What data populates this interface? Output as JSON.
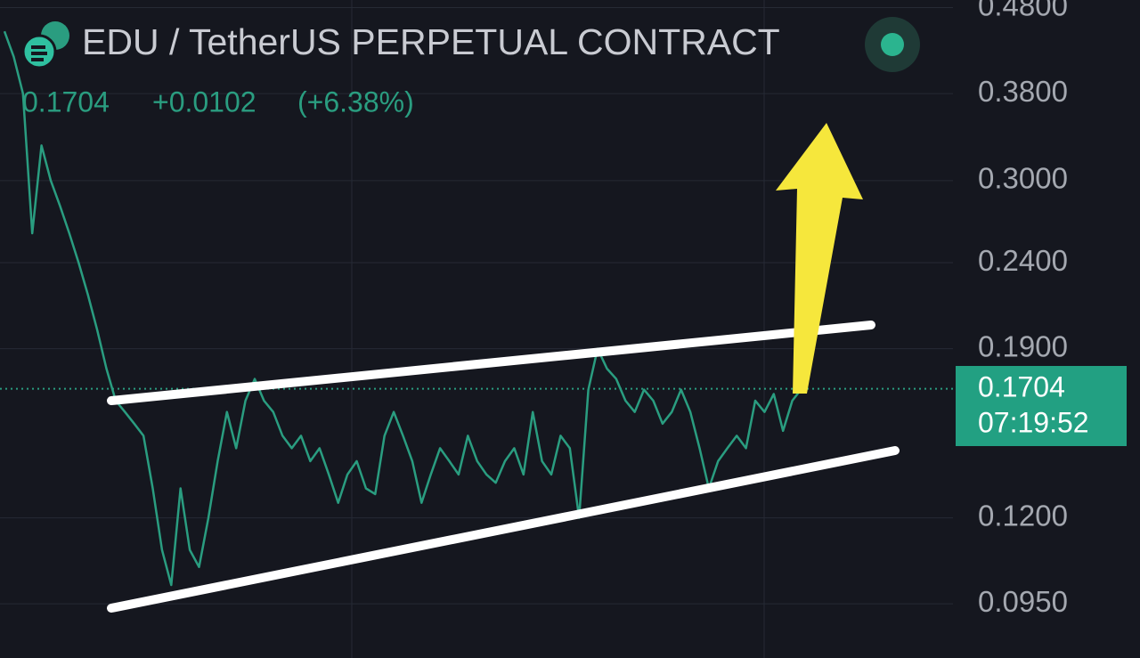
{
  "chart_data": {
    "type": "line",
    "title": "EDU / TetherUS PERPETUAL CONTRACT",
    "last_price": 0.1704,
    "change_text": "+0.0102",
    "change_pct_text": "(+6.38%)",
    "countdown": "07:19:52",
    "log_scale": true,
    "grid": true,
    "ylim": [
      0.082,
      0.49
    ],
    "yticks": [
      {
        "value": 0.48,
        "label": "0.4800"
      },
      {
        "value": 0.38,
        "label": "0.3800"
      },
      {
        "value": 0.3,
        "label": "0.3000"
      },
      {
        "value": 0.24,
        "label": "0.2400"
      },
      {
        "value": 0.19,
        "label": "0.1900"
      },
      {
        "value": 0.12,
        "label": "0.1200"
      },
      {
        "value": 0.095,
        "label": "0.0950"
      }
    ],
    "series": [
      {
        "color": "#2a9d80",
        "values": [
          0.45,
          0.42,
          0.38,
          0.26,
          0.33,
          0.3,
          0.28,
          0.26,
          0.24,
          0.22,
          0.2,
          0.18,
          0.165,
          0.16,
          0.155,
          0.15,
          0.13,
          0.11,
          0.1,
          0.13,
          0.11,
          0.105,
          0.12,
          0.14,
          0.16,
          0.145,
          0.165,
          0.175,
          0.165,
          0.16,
          0.15,
          0.145,
          0.15,
          0.14,
          0.145,
          0.135,
          0.125,
          0.135,
          0.14,
          0.13,
          0.128,
          0.15,
          0.16,
          0.15,
          0.14,
          0.125,
          0.135,
          0.145,
          0.14,
          0.135,
          0.15,
          0.14,
          0.135,
          0.132,
          0.14,
          0.145,
          0.135,
          0.16,
          0.14,
          0.135,
          0.15,
          0.145,
          0.12,
          0.17,
          0.19,
          0.18,
          0.175,
          0.165,
          0.16,
          0.17,
          0.165,
          0.155,
          0.16,
          0.17,
          0.16,
          0.145,
          0.13,
          0.14,
          0.145,
          0.15,
          0.145,
          0.165,
          0.16,
          0.168,
          0.152,
          0.165,
          0.1704
        ]
      }
    ]
  }
}
